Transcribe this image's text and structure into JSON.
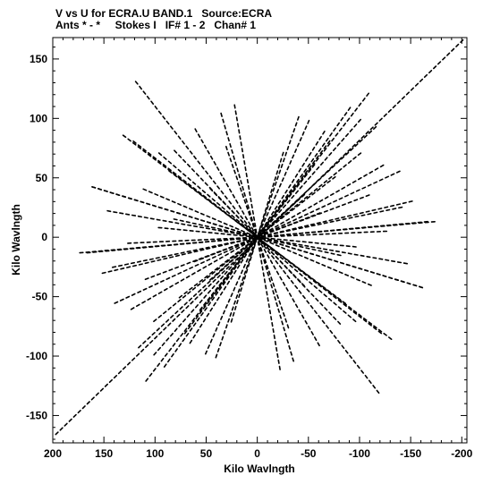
{
  "title": {
    "line1": "V vs U for ECRA.U BAND.1   Source:ECRA",
    "line2": "Ants * - *     Stokes I   IF# 1 - 2   Chan# 1"
  },
  "chart_data": {
    "type": "scatter",
    "title": "V vs U for ECRA.U BAND.1   Source:ECRA",
    "subtitle": "Ants * - *     Stokes I   IF# 1 - 2   Chan# 1",
    "xlabel": "Kilo Wavlngth",
    "ylabel": "Kilo Wavlngth",
    "xlim": [
      200,
      -205
    ],
    "ylim": [
      -173,
      168
    ],
    "x_reversed": true,
    "xticks": [
      200,
      150,
      100,
      50,
      0,
      -50,
      -100,
      -150,
      -200
    ],
    "yticks": [
      -150,
      -100,
      -50,
      0,
      50,
      100,
      150
    ],
    "grid": false,
    "marker_color": "#000000",
    "tracks": [
      {
        "x": [
          196,
          -200
        ],
        "y": [
          -165,
          165
        ]
      },
      {
        "x": [
          118,
          -118
        ],
        "y": [
          130,
          -130
        ]
      },
      {
        "x": [
          108,
          -108
        ],
        "y": [
          -120,
          120
        ]
      },
      {
        "x": [
          160,
          -160
        ],
        "y": [
          42,
          -42
        ]
      },
      {
        "x": [
          165,
          -165
        ],
        "y": [
          -13,
          13
        ]
      },
      {
        "x": [
          -172,
          172
        ],
        "y": [
          13,
          -13
        ]
      },
      {
        "x": [
          138,
          -138
        ],
        "y": [
          -55,
          55
        ]
      },
      {
        "x": [
          -160,
          160
        ],
        "y": [
          -42,
          42
        ]
      },
      {
        "x": [
          115,
          -115
        ],
        "y": [
          -92,
          92
        ]
      },
      {
        "x": [
          90,
          -90
        ],
        "y": [
          -108,
          108
        ]
      },
      {
        "x": [
          22,
          -22
        ],
        "y": [
          110,
          -110
        ]
      },
      {
        "x": [
          -50,
          50
        ],
        "y": [
          97,
          -97
        ]
      },
      {
        "x": [
          -100,
          100
        ],
        "y": [
          98,
          -98
        ]
      },
      {
        "x": [
          130,
          -130
        ],
        "y": [
          85,
          -85
        ]
      },
      {
        "x": [
          95,
          -95
        ],
        "y": [
          70,
          -70
        ]
      },
      {
        "x": [
          -122,
          122
        ],
        "y": [
          60,
          -60
        ]
      },
      {
        "x": [
          145,
          -145
        ],
        "y": [
          22,
          -22
        ]
      },
      {
        "x": [
          -140,
          140
        ],
        "y": [
          25,
          -25
        ]
      },
      {
        "x": [
          70,
          -70
        ],
        "y": [
          -80,
          80
        ]
      },
      {
        "x": [
          -80,
          80
        ],
        "y": [
          -72,
          72
        ]
      },
      {
        "x": [
          60,
          -60
        ],
        "y": [
          90,
          -90
        ]
      },
      {
        "x": [
          -65,
          65
        ],
        "y": [
          88,
          -88
        ]
      },
      {
        "x": [
          110,
          -110
        ],
        "y": [
          40,
          -40
        ]
      },
      {
        "x": [
          -108,
          108
        ],
        "y": [
          35,
          -35
        ]
      },
      {
        "x": [
          150,
          -150
        ],
        "y": [
          -30,
          30
        ]
      },
      {
        "x": [
          40,
          -40
        ],
        "y": [
          -100,
          100
        ]
      },
      {
        "x": [
          -35,
          35
        ],
        "y": [
          -103,
          103
        ]
      },
      {
        "x": [
          125,
          -125
        ],
        "y": [
          -5,
          5
        ]
      },
      {
        "x": [
          -95,
          95
        ],
        "y": [
          -8,
          8
        ]
      },
      {
        "x": [
          85,
          -85
        ],
        "y": [
          55,
          -55
        ]
      },
      {
        "x": [
          -75,
          75
        ],
        "y": [
          50,
          -50
        ]
      },
      {
        "x": [
          55,
          -55
        ],
        "y": [
          -60,
          60
        ]
      },
      {
        "x": [
          30,
          -30
        ],
        "y": [
          75,
          -75
        ]
      },
      {
        "x": [
          -25,
          25
        ],
        "y": [
          70,
          -70
        ]
      },
      {
        "x": [
          100,
          -100
        ],
        "y": [
          -70,
          70
        ]
      },
      {
        "x": [
          -120,
          120
        ],
        "y": [
          -80,
          80
        ]
      },
      {
        "x": [
          80,
          -80
        ],
        "y": [
          15,
          -15
        ]
      },
      {
        "x": [
          -60,
          60
        ],
        "y": [
          20,
          -20
        ]
      },
      {
        "x": [
          45,
          -45
        ],
        "y": [
          40,
          -40
        ]
      },
      {
        "x": [
          -45,
          45
        ],
        "y": [
          35,
          -35
        ]
      }
    ]
  }
}
